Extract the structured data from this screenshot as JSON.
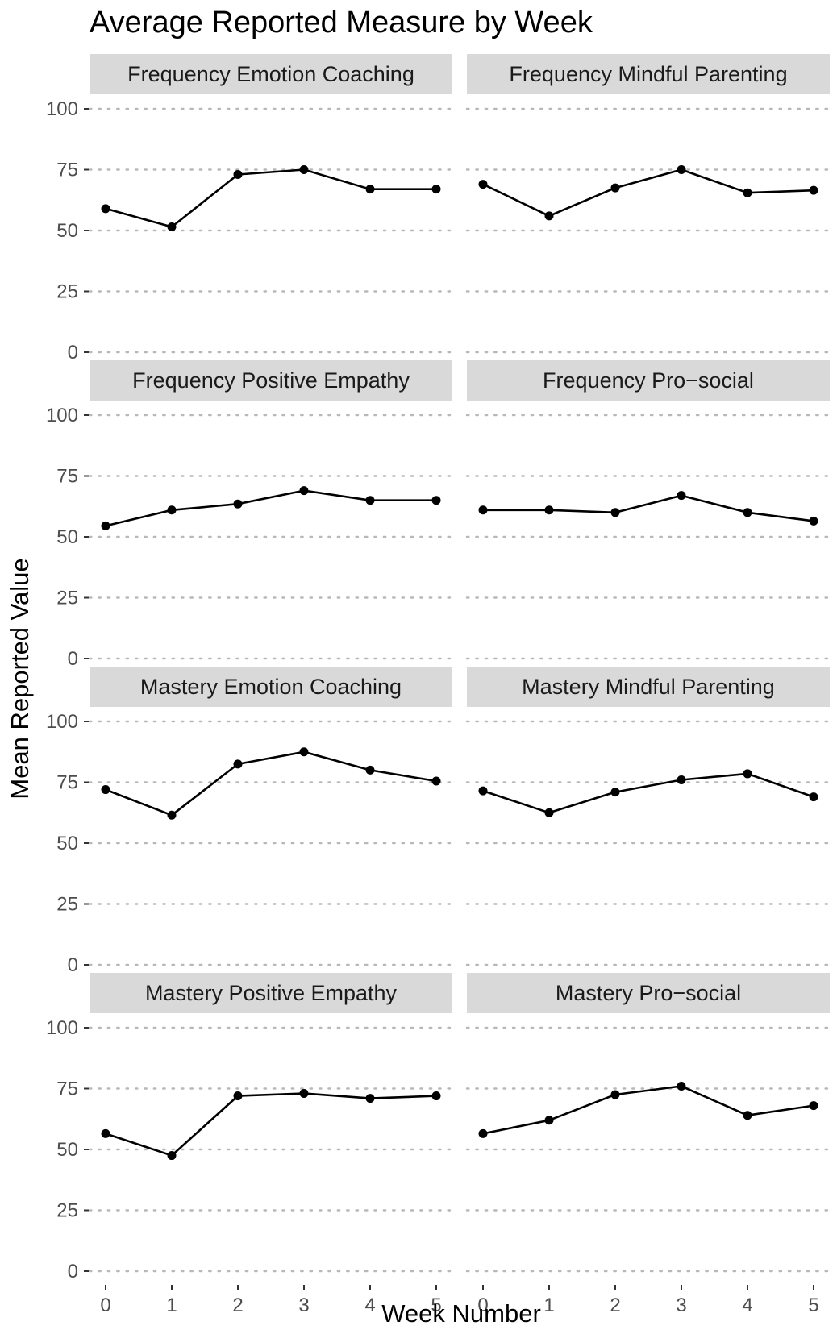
{
  "chart_data": {
    "type": "line",
    "title": "Average Reported Measure by Week",
    "xlabel": "Week Number",
    "ylabel": "Mean Reported Value",
    "x": [
      0,
      1,
      2,
      3,
      4,
      5
    ],
    "xticks": [
      "0",
      "1",
      "2",
      "3",
      "4",
      "5"
    ],
    "ylim": [
      0,
      100
    ],
    "yticks": [
      "0",
      "25",
      "50",
      "75",
      "100"
    ],
    "grid": "horizontal dotted",
    "facets": [
      {
        "name": "Frequency Emotion Coaching",
        "values": [
          59,
          51.5,
          73,
          75,
          67,
          67
        ]
      },
      {
        "name": "Frequency Mindful Parenting",
        "values": [
          69,
          56,
          67.5,
          75,
          65.5,
          66.5
        ]
      },
      {
        "name": "Frequency Positive Empathy",
        "values": [
          54.5,
          61,
          63.5,
          69,
          65,
          65
        ]
      },
      {
        "name": "Frequency Pro−social",
        "values": [
          61,
          61,
          60,
          67,
          60,
          56.5
        ]
      },
      {
        "name": "Mastery Emotion Coaching",
        "values": [
          72,
          61.5,
          82.5,
          87.5,
          80,
          75.5
        ]
      },
      {
        "name": "Mastery Mindful Parenting",
        "values": [
          71.5,
          62.5,
          71,
          76,
          78.5,
          69
        ]
      },
      {
        "name": "Mastery Positive Empathy",
        "values": [
          56.5,
          47.5,
          72,
          73,
          71,
          72
        ]
      },
      {
        "name": "Mastery Pro−social",
        "values": [
          56.5,
          62,
          72.5,
          76,
          64,
          68
        ]
      }
    ]
  }
}
